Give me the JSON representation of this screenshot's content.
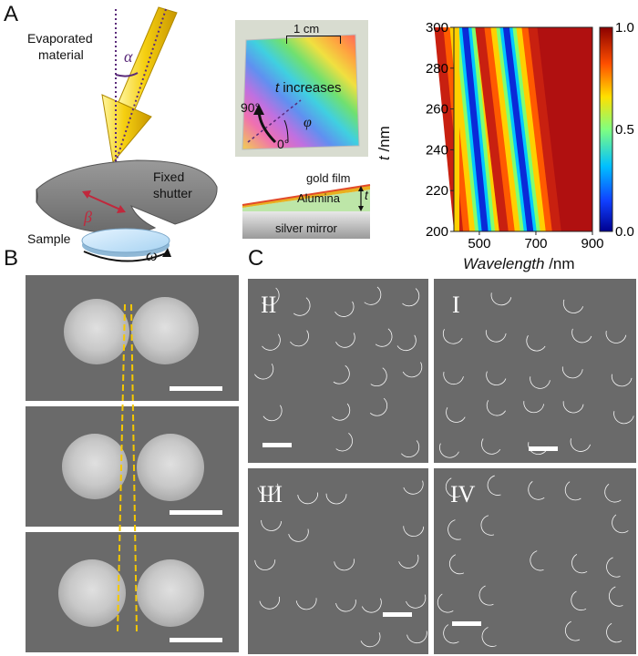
{
  "panel_a": {
    "letter": "A",
    "evaporated_label_line1": "Evaporated",
    "evaporated_label_line2": "material",
    "alpha": "α",
    "beta": "β",
    "omega": "ω",
    "shutter_line1": "Fixed",
    "shutter_line2": "shutter",
    "sample": "Sample",
    "scale_text": "1 cm",
    "t_increases_t": "t",
    "t_increases_rest": " increases",
    "angle_90": "90°",
    "angle_0": "0°",
    "phi": "φ",
    "stack_gold": "gold film",
    "stack_alumina": "Alumina",
    "stack_silver": "silver mirror",
    "stack_t": "t"
  },
  "chart_data": {
    "type": "heatmap",
    "xlabel_italic": "Wavelength",
    "xlabel_unit": " /nm",
    "ylabel_italic": "t",
    "ylabel_unit": " /nm",
    "xlim": [
      410,
      900
    ],
    "ylim": [
      200,
      300
    ],
    "x_ticks": [
      "500",
      "700",
      "900"
    ],
    "x_tick_values": [
      500,
      700,
      900
    ],
    "y_ticks": [
      "200",
      "220",
      "240",
      "260",
      "280",
      "300"
    ],
    "y_tick_values": [
      200,
      220,
      240,
      260,
      280,
      300
    ],
    "colorbar_ticks": [
      "0.0",
      "0.5",
      "1.0"
    ],
    "colorbar_values": [
      0.0,
      0.5,
      1.0
    ],
    "minima_bands": [
      {
        "t": [
          200,
          300
        ],
        "wavelength": [
          520,
          450
        ]
      },
      {
        "t": [
          200,
          300
        ],
        "wavelength": [
          680,
          595
        ]
      }
    ]
  },
  "panel_b": {
    "letter": "B"
  },
  "panel_c": {
    "letter": "C",
    "tiles": [
      {
        "label": "II"
      },
      {
        "label": "I"
      },
      {
        "label": "III"
      },
      {
        "label": "IV"
      }
    ]
  },
  "colors": {
    "arrow_yellow": "#f2c400",
    "shutter_gray": "#8c8c8c",
    "guide_yellow": "#f5c800",
    "em_background": "#6a6a6a"
  }
}
